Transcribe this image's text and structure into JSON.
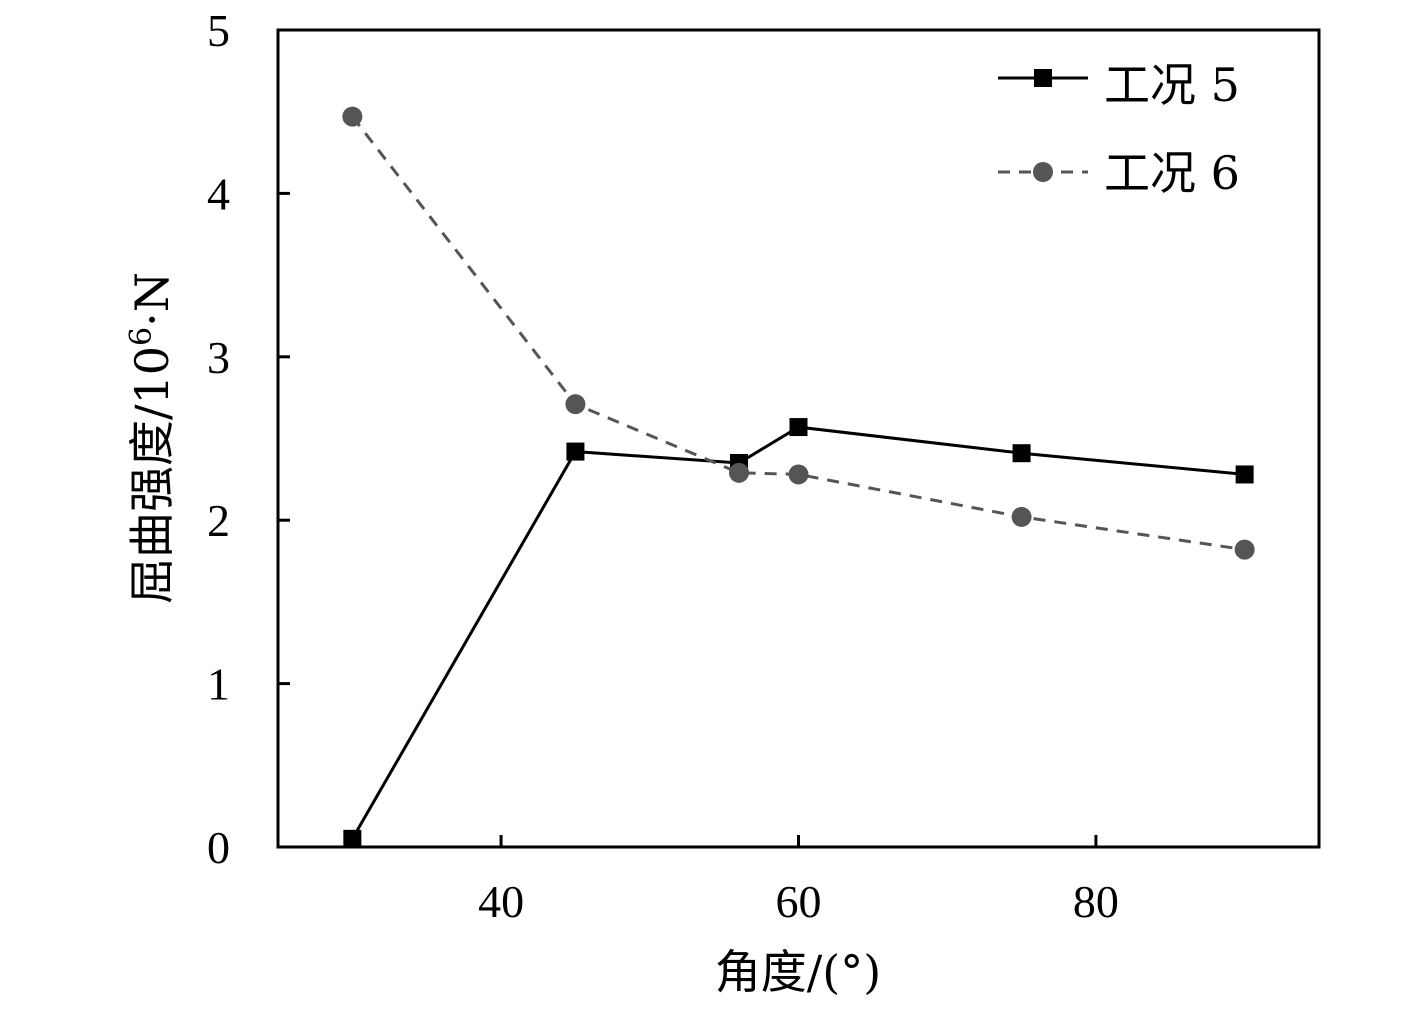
{
  "chart_data": {
    "type": "line",
    "title": "",
    "xlabel": "角度/(°)",
    "ylabel_main": "屈曲强度/10",
    "ylabel_sup": "6",
    "ylabel_unit": "·N",
    "xlim": [
      25,
      95
    ],
    "ylim": [
      0,
      5
    ],
    "xticks": [
      40,
      60,
      80
    ],
    "yticks": [
      0,
      1,
      2,
      3,
      4,
      5
    ],
    "grid": false,
    "legend_position": "top-right",
    "series": [
      {
        "name": "工况 5",
        "color": "#000000",
        "line_style": "solid",
        "marker": "square",
        "x": [
          30,
          45,
          56,
          60,
          75,
          90
        ],
        "y": [
          0.05,
          2.42,
          2.35,
          2.57,
          2.41,
          2.28
        ]
      },
      {
        "name": "工况 6",
        "color": "#555555",
        "line_style": "dashed",
        "marker": "circle",
        "x": [
          30,
          45,
          56,
          60,
          75,
          90
        ],
        "y": [
          4.47,
          2.71,
          2.29,
          2.28,
          2.02,
          1.82
        ]
      }
    ]
  }
}
